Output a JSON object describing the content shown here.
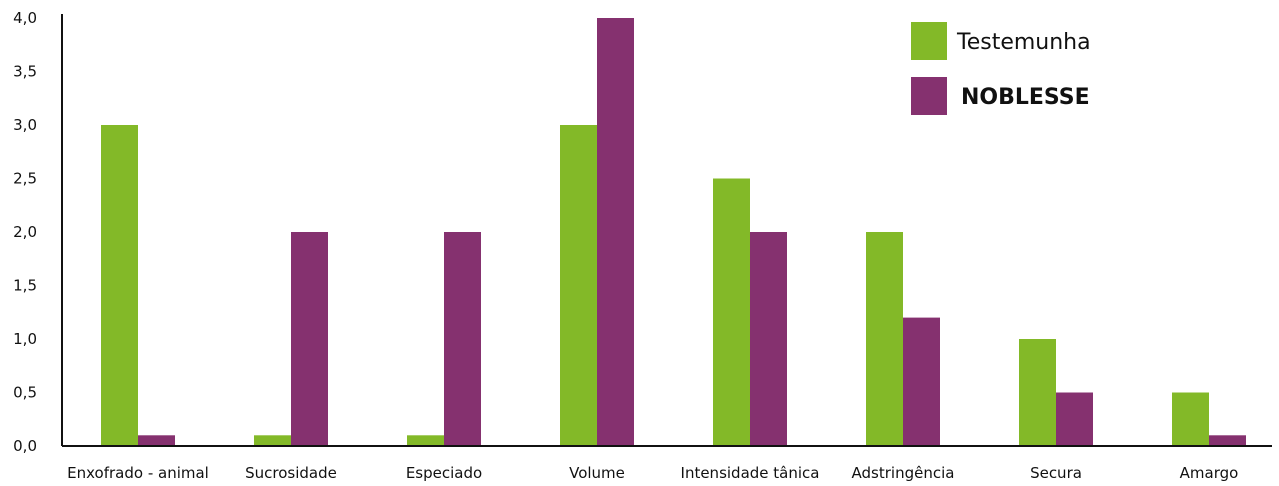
{
  "chart_data": {
    "type": "bar",
    "categories": [
      "Enxofrado - animal",
      "Sucrosidade",
      "Especiado",
      "Volume",
      "Intensidade tânica",
      "Adstringência",
      "Secura",
      "Amargo"
    ],
    "series": [
      {
        "name": "Testemunha",
        "values": [
          3.0,
          0.1,
          0.1,
          3.0,
          2.5,
          2.0,
          1.0,
          0.5
        ],
        "color": "#83b928"
      },
      {
        "name": "NOBLESSE",
        "values": [
          0.1,
          2.0,
          2.0,
          4.0,
          2.0,
          1.2,
          0.5,
          0.1
        ],
        "color": "#85316f"
      }
    ],
    "y_ticks": [
      "0,0",
      "0,5",
      "1,0",
      "1,5",
      "2,0",
      "2,5",
      "3,0",
      "3,5",
      "4,0"
    ],
    "ylim": [
      0,
      4.0
    ],
    "legend_position": "top-right",
    "grid": false
  }
}
